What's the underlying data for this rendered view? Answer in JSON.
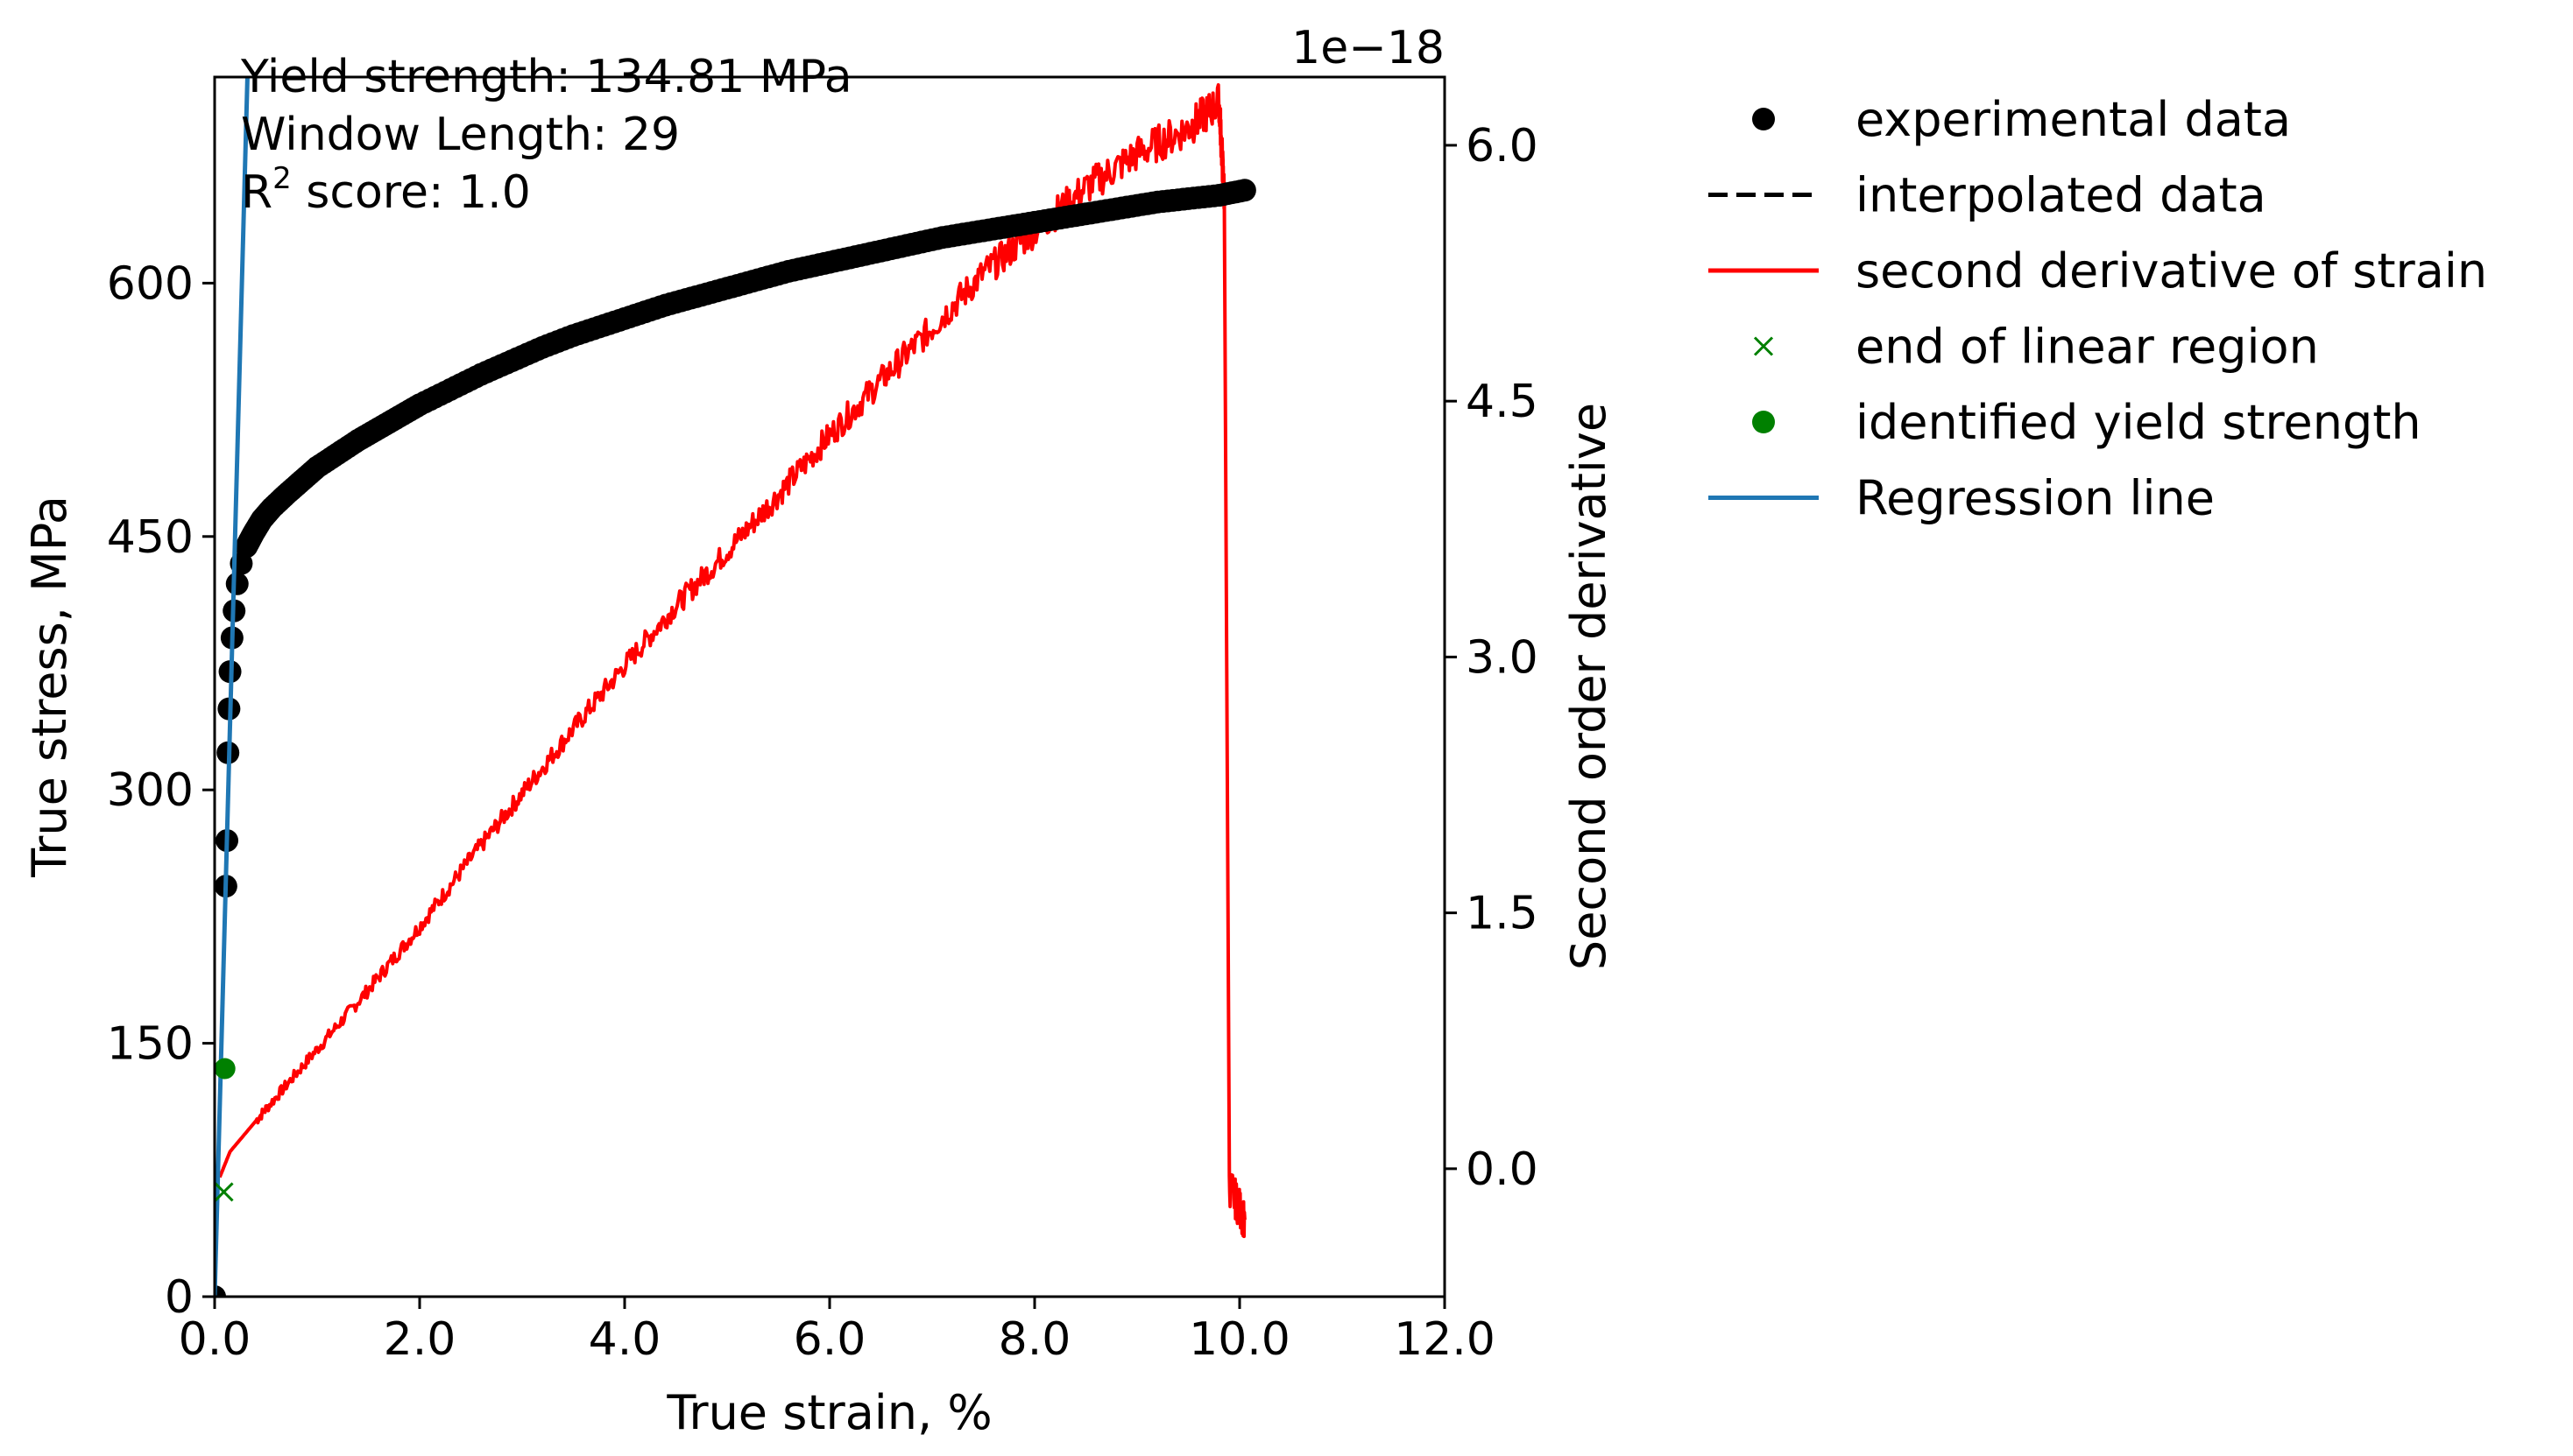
{
  "chart_data": {
    "type": "scatter",
    "xlabel": "True strain, %",
    "ylabel": "True stress, MPa",
    "y2label": "Second order derivative",
    "y2_offset_text": "1e−18",
    "xlim": [
      0,
      12
    ],
    "ylim": [
      0,
      722
    ],
    "y2lim": [
      -0.75,
      6.4
    ],
    "xticks": [
      "0.0",
      "2.0",
      "4.0",
      "6.0",
      "8.0",
      "10.0",
      "12.0"
    ],
    "xtick_values": [
      0,
      2,
      4,
      6,
      8,
      10,
      12
    ],
    "yticks": [
      "0",
      "150",
      "300",
      "450",
      "600"
    ],
    "ytick_values": [
      0,
      150,
      300,
      450,
      600
    ],
    "y2ticks": [
      "0.0",
      "1.5",
      "3.0",
      "4.5",
      "6.0"
    ],
    "y2tick_values": [
      0,
      1.5,
      3.0,
      4.5,
      6.0
    ],
    "grid": false,
    "legend_position": "outside-right",
    "annotation": {
      "line1": "Yield strength: 134.81 MPa",
      "line2": "Window Length: 29",
      "line3_prefix": "R",
      "line3_sup": "2",
      "line3_suffix": " score: 1.0"
    },
    "series": [
      {
        "name": "experimental data",
        "kind": "markers",
        "color": "#000000",
        "x": [
          0.0,
          0.11,
          0.12,
          0.13,
          0.14,
          0.15,
          0.17,
          0.19,
          0.22,
          0.26,
          0.31,
          0.38,
          0.46,
          0.56,
          0.7,
          0.85,
          1.0,
          1.2,
          1.4,
          1.6,
          1.8,
          2.0,
          2.3,
          2.6,
          2.9,
          3.2,
          3.5,
          3.8,
          4.1,
          4.4,
          4.7,
          5.0,
          5.3,
          5.6,
          5.9,
          6.2,
          6.5,
          6.8,
          7.1,
          7.4,
          7.7,
          8.0,
          8.3,
          8.6,
          8.9,
          9.2,
          9.5,
          9.8,
          10.05
        ],
        "y": [
          0,
          243,
          270,
          322,
          348,
          370,
          390,
          406,
          422,
          434,
          444,
          452,
          460,
          467,
          475,
          483,
          491,
          499,
          507,
          514,
          521,
          528,
          537,
          546,
          554,
          562,
          569,
          575,
          581,
          587,
          592,
          597,
          602,
          607,
          611,
          615,
          619,
          623,
          627,
          630,
          633,
          636,
          639,
          642,
          645,
          648,
          650,
          652,
          655
        ]
      },
      {
        "name": "interpolated data",
        "kind": "dashed-line",
        "color": "#000000",
        "x": [],
        "y": []
      },
      {
        "name": "second derivative of strain",
        "kind": "line",
        "color": "#ff0000",
        "axis": "right",
        "x": [
          0.05,
          0.15,
          0.5,
          1.0,
          1.5,
          2.0,
          2.5,
          3.0,
          3.5,
          4.0,
          4.5,
          5.0,
          5.5,
          6.0,
          6.5,
          7.0,
          7.5,
          8.0,
          8.5,
          9.0,
          9.5,
          9.8,
          9.85,
          9.9,
          10.05
        ],
        "y": [
          -0.05,
          0.1,
          0.35,
          0.7,
          1.05,
          1.42,
          1.82,
          2.2,
          2.58,
          2.95,
          3.3,
          3.62,
          3.95,
          4.3,
          4.62,
          4.93,
          5.25,
          5.5,
          5.75,
          5.95,
          6.1,
          6.25,
          5.7,
          -0.1,
          -0.3
        ],
        "noise_amplitude": 0.09
      },
      {
        "name": "end of linear region",
        "kind": "x-marker",
        "color": "#008000",
        "x": [
          0.09
        ],
        "y": [
          62
        ]
      },
      {
        "name": "identified yield strength",
        "kind": "marker",
        "color": "#008000",
        "x": [
          0.1
        ],
        "y": [
          135
        ]
      },
      {
        "name": "Regression line",
        "kind": "line",
        "color": "#1f77b4",
        "x": [
          0.0,
          0.32
        ],
        "y": [
          0,
          722
        ]
      }
    ]
  }
}
